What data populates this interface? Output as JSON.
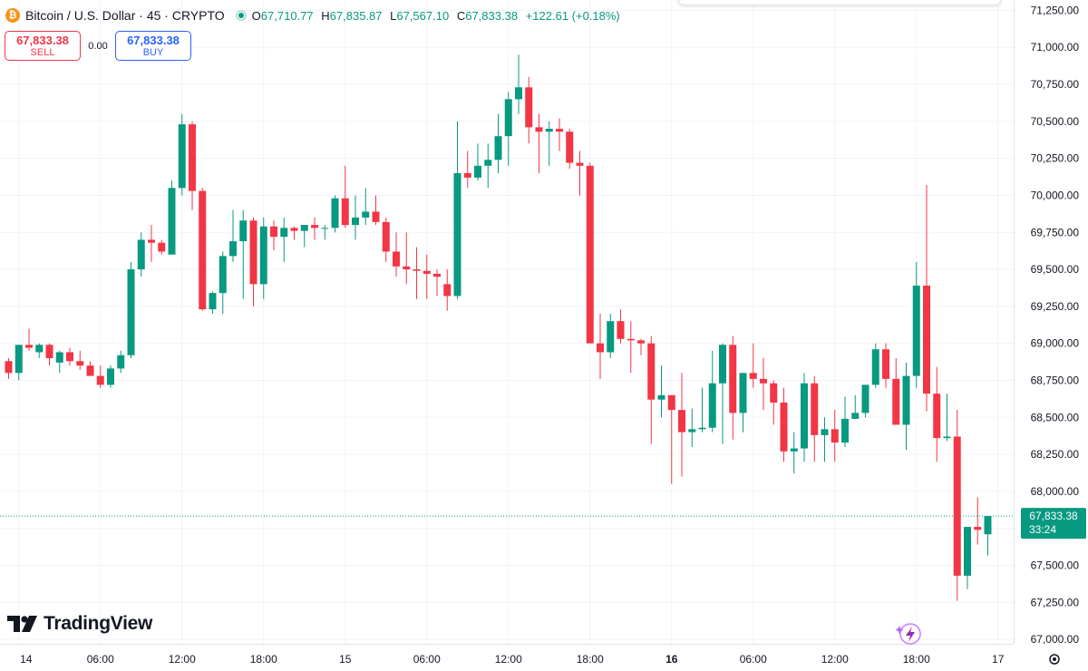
{
  "header": {
    "coin_symbol": "₿",
    "title": "Bitcoin / U.S. Dollar · 45 · CRYPTO",
    "open_label": "O",
    "open": "67,710.77",
    "high_label": "H",
    "high": "67,835.87",
    "low_label": "L",
    "low": "67,567.10",
    "close_label": "C",
    "close": "67,833.38",
    "change": "+122.61 (+0.18%)"
  },
  "trade": {
    "sell_price": "67,833.38",
    "sell_label": "SELL",
    "spread": "0.00",
    "buy_price": "67,833.38",
    "buy_label": "BUY"
  },
  "logo": {
    "text": "TradingView"
  },
  "price_tag": {
    "price": "67,833.38",
    "countdown": "33:24"
  },
  "colors": {
    "up": "#089981",
    "down": "#f23645",
    "grid": "#f0f3fa",
    "text": "#131722",
    "brand_coin": "#f7931a"
  },
  "icons": {
    "coin": "bitcoin-icon",
    "settings": "gear-icon",
    "assistant": "lightning-icon",
    "logo": "tradingview-logo-icon"
  },
  "chart_data": {
    "type": "candlestick",
    "interval": "45",
    "y_ticks": [
      67000,
      67250,
      67500,
      67750,
      68000,
      68250,
      68500,
      68750,
      69000,
      69250,
      69500,
      69750,
      70000,
      70250,
      70500,
      70750,
      71000,
      71250
    ],
    "y_tick_labels": [
      "67,000.00",
      "67,250.00",
      "67,500.00",
      "67,750.00",
      "68,000.00",
      "68,250.00",
      "68,500.00",
      "68,750.00",
      "69,000.00",
      "69,250.00",
      "69,500.00",
      "69,750.00",
      "70,000.00",
      "70,250.00",
      "70,500.00",
      "70,750.00",
      "71,000.00",
      "71,250.00"
    ],
    "ylim": [
      66970,
      71320
    ],
    "x_tick_labels": [
      "14",
      "06:00",
      "12:00",
      "18:00",
      "15",
      "06:00",
      "12:00",
      "18:00",
      "16",
      "06:00",
      "12:00",
      "18:00",
      "17"
    ],
    "x_tick_bar_index": [
      1,
      9,
      17,
      25,
      33,
      41,
      49,
      57,
      65,
      73,
      81,
      89,
      97
    ],
    "last_price": 67833.38,
    "grid": true,
    "candles": [
      [
        68880,
        68900,
        68760,
        68800
      ],
      [
        68800,
        68990,
        68750,
        68990
      ],
      [
        68990,
        69100,
        68950,
        68970
      ],
      [
        68940,
        69000,
        68900,
        68990
      ],
      [
        68990,
        69000,
        68850,
        68900
      ],
      [
        68870,
        68950,
        68800,
        68940
      ],
      [
        68940,
        68970,
        68850,
        68880
      ],
      [
        68880,
        68950,
        68820,
        68850
      ],
      [
        68850,
        68880,
        68800,
        68780
      ],
      [
        68780,
        68850,
        68700,
        68720
      ],
      [
        68720,
        68850,
        68700,
        68830
      ],
      [
        68830,
        68950,
        68800,
        68920
      ],
      [
        68920,
        69550,
        68900,
        69500
      ],
      [
        69500,
        69750,
        69450,
        69700
      ],
      [
        69700,
        69800,
        69550,
        69680
      ],
      [
        69680,
        69700,
        69600,
        69620
      ],
      [
        69600,
        70100,
        69600,
        70050
      ],
      [
        70050,
        70550,
        70000,
        70480
      ],
      [
        70480,
        70500,
        69900,
        70030
      ],
      [
        70030,
        70050,
        69220,
        69230
      ],
      [
        69230,
        69350,
        69200,
        69340
      ],
      [
        69340,
        69620,
        69200,
        69590
      ],
      [
        69590,
        69900,
        69550,
        69690
      ],
      [
        69690,
        69900,
        69300,
        69830
      ],
      [
        69830,
        69850,
        69250,
        69400
      ],
      [
        69400,
        69850,
        69300,
        69790
      ],
      [
        69790,
        69830,
        69630,
        69720
      ],
      [
        69720,
        69850,
        69550,
        69780
      ],
      [
        69780,
        69790,
        69700,
        69760
      ],
      [
        69760,
        69800,
        69650,
        69800
      ],
      [
        69800,
        69850,
        69700,
        69780
      ],
      [
        69780,
        69800,
        69700,
        69780
      ],
      [
        69780,
        70000,
        69750,
        69980
      ],
      [
        69980,
        70200,
        69780,
        69800
      ],
      [
        69800,
        70000,
        69700,
        69850
      ],
      [
        69850,
        70050,
        69800,
        69890
      ],
      [
        69890,
        70000,
        69800,
        69820
      ],
      [
        69820,
        69850,
        69550,
        69620
      ],
      [
        69620,
        69750,
        69450,
        69520
      ],
      [
        69520,
        69750,
        69400,
        69500
      ],
      [
        69500,
        69650,
        69300,
        69490
      ],
      [
        69490,
        69600,
        69300,
        69470
      ],
      [
        69470,
        69500,
        69320,
        69450
      ],
      [
        69400,
        69500,
        69220,
        69320
      ],
      [
        69320,
        70500,
        69300,
        70150
      ],
      [
        70150,
        70300,
        70050,
        70120
      ],
      [
        70120,
        70350,
        70100,
        70200
      ],
      [
        70200,
        70350,
        70050,
        70240
      ],
      [
        70240,
        70550,
        70150,
        70400
      ],
      [
        70400,
        70700,
        70200,
        70650
      ],
      [
        70650,
        70950,
        70550,
        70730
      ],
      [
        70730,
        70800,
        70350,
        70460
      ],
      [
        70460,
        70550,
        70150,
        70430
      ],
      [
        70430,
        70500,
        70200,
        70450
      ],
      [
        70450,
        70520,
        70300,
        70430
      ],
      [
        70430,
        70450,
        70180,
        70220
      ],
      [
        70220,
        70300,
        70000,
        70200
      ],
      [
        70200,
        70220,
        69000,
        69000
      ],
      [
        69000,
        69200,
        68760,
        68940
      ],
      [
        68940,
        69200,
        68900,
        69150
      ],
      [
        69150,
        69230,
        69000,
        69030
      ],
      [
        69030,
        69150,
        68800,
        69020
      ],
      [
        69020,
        69030,
        68920,
        69000
      ],
      [
        69000,
        69050,
        68320,
        68620
      ],
      [
        68620,
        68850,
        68500,
        68650
      ],
      [
        68650,
        68650,
        68050,
        68550
      ],
      [
        68550,
        68800,
        68100,
        68400
      ],
      [
        68400,
        68560,
        68300,
        68420
      ],
      [
        68420,
        68700,
        68400,
        68430
      ],
      [
        68430,
        68950,
        68400,
        68730
      ],
      [
        68730,
        69000,
        68320,
        68990
      ],
      [
        68990,
        69050,
        68350,
        68530
      ],
      [
        68530,
        68800,
        68400,
        68800
      ],
      [
        68800,
        69000,
        68700,
        68760
      ],
      [
        68760,
        68900,
        68550,
        68730
      ],
      [
        68730,
        68750,
        68450,
        68600
      ],
      [
        68600,
        68700,
        68200,
        68270
      ],
      [
        68270,
        68400,
        68120,
        68290
      ],
      [
        68290,
        68800,
        68200,
        68730
      ],
      [
        68730,
        68780,
        68200,
        68380
      ],
      [
        68380,
        68500,
        68200,
        68420
      ],
      [
        68420,
        68550,
        68200,
        68330
      ],
      [
        68330,
        68640,
        68300,
        68490
      ],
      [
        68490,
        68650,
        68500,
        68530
      ],
      [
        68530,
        68700,
        68500,
        68720
      ],
      [
        68720,
        69000,
        68700,
        68960
      ],
      [
        68960,
        69000,
        68700,
        68760
      ],
      [
        68760,
        68900,
        68460,
        68450
      ],
      [
        68450,
        68870,
        68280,
        68780
      ],
      [
        68780,
        69550,
        68700,
        69390
      ],
      [
        69390,
        70070,
        68540,
        68660
      ],
      [
        68660,
        68840,
        68200,
        68360
      ],
      [
        68360,
        68660,
        68340,
        68370
      ],
      [
        68370,
        68550,
        67260,
        67430
      ],
      [
        67430,
        67760,
        67340,
        67760
      ],
      [
        67760,
        67960,
        67640,
        67740
      ],
      [
        67710,
        67835,
        67567,
        67833
      ]
    ]
  }
}
